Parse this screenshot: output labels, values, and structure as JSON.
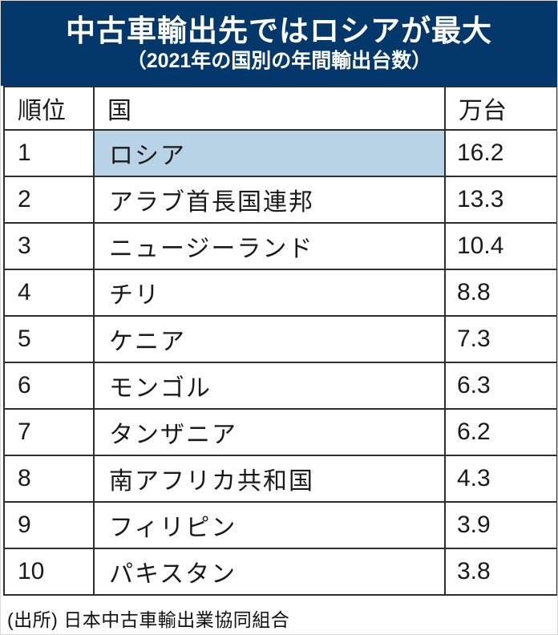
{
  "header": {
    "title": "中古車輸出先ではロシアが最大",
    "subtitle": "（2021年の国別の年間輸出台数）",
    "bg_color": "#04386a",
    "text_color": "#ffffff"
  },
  "table": {
    "columns": [
      "順位",
      "国",
      "万台"
    ],
    "highlight_color": "#b8d3e6",
    "rows": [
      {
        "rank": "1",
        "country": "ロシア",
        "value": "16.2",
        "highlighted": true
      },
      {
        "rank": "2",
        "country": "アラブ首長国連邦",
        "value": "13.3",
        "highlighted": false
      },
      {
        "rank": "3",
        "country": "ニュージーランド",
        "value": "10.4",
        "highlighted": false
      },
      {
        "rank": "4",
        "country": "チリ",
        "value": "8.8",
        "highlighted": false
      },
      {
        "rank": "5",
        "country": "ケニア",
        "value": "7.3",
        "highlighted": false
      },
      {
        "rank": "6",
        "country": "モンゴル",
        "value": "6.3",
        "highlighted": false
      },
      {
        "rank": "7",
        "country": "タンザニア",
        "value": "6.2",
        "highlighted": false
      },
      {
        "rank": "8",
        "country": "南アフリカ共和国",
        "value": "4.3",
        "highlighted": false
      },
      {
        "rank": "9",
        "country": "フィリピン",
        "value": "3.9",
        "highlighted": false
      },
      {
        "rank": "10",
        "country": "パキスタン",
        "value": "3.8",
        "highlighted": false
      }
    ]
  },
  "footer": {
    "source": "(出所) 日本中古車輸出業協同組合"
  },
  "chart_data": {
    "type": "table",
    "title": "中古車輸出先ではロシアが最大",
    "subtitle": "（2021年の国別の年間輸出台数）",
    "columns": [
      "順位",
      "国",
      "万台"
    ],
    "unit": "万台",
    "rows": [
      [
        1,
        "ロシア",
        16.2
      ],
      [
        2,
        "アラブ首長国連邦",
        13.3
      ],
      [
        3,
        "ニュージーランド",
        10.4
      ],
      [
        4,
        "チリ",
        8.8
      ],
      [
        5,
        "ケニア",
        7.3
      ],
      [
        6,
        "モンゴル",
        6.3
      ],
      [
        7,
        "タンザニア",
        6.2
      ],
      [
        8,
        "南アフリカ共和国",
        4.3
      ],
      [
        9,
        "フィリピン",
        3.9
      ],
      [
        10,
        "パキスタン",
        3.8
      ]
    ],
    "highlighted_row": "ロシア",
    "source": "(出所) 日本中古車輸出業協同組合"
  }
}
